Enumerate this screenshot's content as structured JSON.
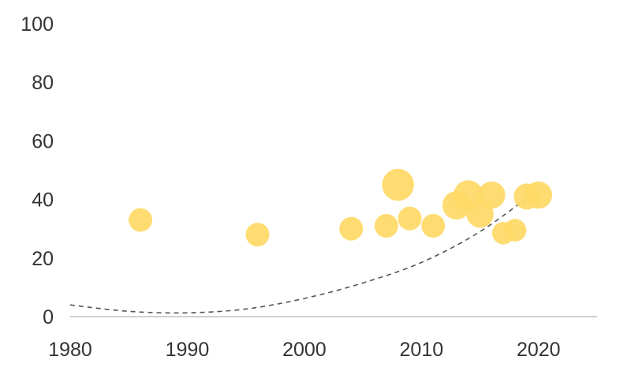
{
  "chart_data": {
    "type": "scatter",
    "title": "",
    "xlabel": "",
    "ylabel": "",
    "xlim": [
      1980,
      2025
    ],
    "ylim": [
      0,
      100
    ],
    "x_ticks": [
      1980,
      1990,
      2000,
      2010,
      2020
    ],
    "x_tick_labels": [
      "1980",
      "1990",
      "2000",
      "2010",
      "2020"
    ],
    "y_ticks": [
      0,
      20,
      40,
      60,
      80,
      100
    ],
    "y_tick_labels": [
      "0",
      "20",
      "40",
      "60",
      "80",
      "100"
    ],
    "grid": false,
    "legend": "none",
    "series": [
      {
        "marker": "bubble",
        "color": "#FFD966",
        "points": [
          {
            "x": 1986,
            "y": 33,
            "size": 1.0
          },
          {
            "x": 1996,
            "y": 28,
            "size": 1.0
          },
          {
            "x": 2004,
            "y": 30,
            "size": 1.0
          },
          {
            "x": 2007,
            "y": 31,
            "size": 1.0
          },
          {
            "x": 2008,
            "y": 45,
            "size": 1.35
          },
          {
            "x": 2009,
            "y": 33.5,
            "size": 1.0
          },
          {
            "x": 2011,
            "y": 31,
            "size": 1.0
          },
          {
            "x": 2013,
            "y": 38,
            "size": 1.2
          },
          {
            "x": 2014,
            "y": 41.5,
            "size": 1.25
          },
          {
            "x": 2015,
            "y": 35,
            "size": 1.15
          },
          {
            "x": 2016,
            "y": 41.5,
            "size": 1.15
          },
          {
            "x": 2017,
            "y": 28.5,
            "size": 0.95
          },
          {
            "x": 2018,
            "y": 29.5,
            "size": 0.95
          },
          {
            "x": 2019,
            "y": 41,
            "size": 1.1
          },
          {
            "x": 2020,
            "y": 41.5,
            "size": 1.15
          }
        ]
      }
    ],
    "trendline": {
      "style": "dashed",
      "color": "#555555",
      "kind": "polynomial",
      "points": [
        {
          "x": 1980,
          "y": 4.0
        },
        {
          "x": 1985,
          "y": 1.8
        },
        {
          "x": 1990,
          "y": 1.3
        },
        {
          "x": 1995,
          "y": 2.6
        },
        {
          "x": 2000,
          "y": 6.2
        },
        {
          "x": 2005,
          "y": 11.5
        },
        {
          "x": 2010,
          "y": 18.5
        },
        {
          "x": 2015,
          "y": 29.0
        },
        {
          "x": 2020,
          "y": 43.5
        }
      ]
    },
    "axis_color": "#bfbfbf"
  }
}
